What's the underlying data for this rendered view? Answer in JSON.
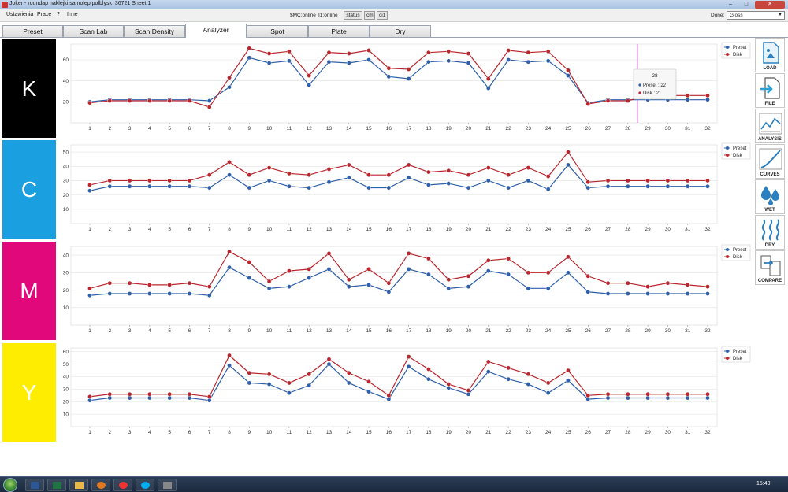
{
  "window": {
    "title": "Joker - roundap naklejki samolep polblysk_36721 Sheet 1",
    "minimize": "–",
    "maximize": "□",
    "close": "✕"
  },
  "menu": {
    "items": [
      "Ustawienia",
      "Prace",
      "?",
      "Inne"
    ]
  },
  "status": {
    "smc": "$MC:online",
    "i1": "I1:online",
    "status_btn": "status",
    "cm_btn": "cm",
    "ci_btn": "ci1"
  },
  "done": {
    "label": "Done:",
    "value": "Gloss"
  },
  "tabs": [
    "Preset",
    "Scan Lab",
    "Scan Density",
    "Analyzer",
    "Spot",
    "Plate",
    "Dry"
  ],
  "active_tab": "Analyzer",
  "sidebar": [
    "LOAD",
    "FILE",
    "ANALYSIS",
    "CURVES",
    "WET",
    "DRY",
    "COMPARE"
  ],
  "tooltip": {
    "title": "28",
    "preset": "Preset : 22",
    "disk": "Disk : 21"
  },
  "taskbar": {
    "clock": "15:49"
  },
  "colors": {
    "preset": "#2e5fa8",
    "disk": "#b8262e",
    "cyan": "#1a9fe0",
    "magenta": "#e0087a",
    "yellow": "#ffed00",
    "black": "#000000",
    "cursor": "#cc33cc"
  },
  "chart_data": [
    {
      "type": "line",
      "channel": "K",
      "band_color": "black",
      "ylim": [
        0,
        75
      ],
      "yticks": [
        20,
        40,
        60
      ],
      "x": [
        1,
        2,
        3,
        4,
        5,
        6,
        7,
        8,
        9,
        10,
        11,
        12,
        13,
        14,
        15,
        16,
        17,
        18,
        19,
        20,
        21,
        22,
        23,
        24,
        25,
        26,
        27,
        28,
        29,
        30,
        31,
        32
      ],
      "series": [
        {
          "name": "Preset",
          "values": [
            20,
            22,
            22,
            22,
            22,
            22,
            21,
            34,
            62,
            57,
            59,
            36,
            58,
            57,
            60,
            44,
            42,
            58,
            59,
            57,
            33,
            60,
            58,
            59,
            45,
            19,
            22,
            22,
            22,
            22,
            22,
            22
          ]
        },
        {
          "name": "Disk",
          "values": [
            19,
            21,
            21,
            21,
            21,
            21,
            15,
            43,
            71,
            66,
            68,
            45,
            67,
            66,
            69,
            52,
            51,
            67,
            68,
            66,
            42,
            69,
            67,
            68,
            50,
            18,
            21,
            21,
            26,
            26,
            26,
            26
          ]
        }
      ],
      "legend": "top-right"
    },
    {
      "type": "line",
      "channel": "C",
      "band_color": "cyan",
      "ylim": [
        0,
        55
      ],
      "yticks": [
        10,
        20,
        30,
        40,
        50
      ],
      "x": [
        1,
        2,
        3,
        4,
        5,
        6,
        7,
        8,
        9,
        10,
        11,
        12,
        13,
        14,
        15,
        16,
        17,
        18,
        19,
        20,
        21,
        22,
        23,
        24,
        25,
        26,
        27,
        28,
        29,
        30,
        31,
        32
      ],
      "series": [
        {
          "name": "Preset",
          "values": [
            23,
            26,
            26,
            26,
            26,
            26,
            25,
            34,
            25,
            30,
            26,
            25,
            29,
            32,
            25,
            25,
            32,
            27,
            28,
            25,
            30,
            25,
            30,
            24,
            41,
            25,
            26,
            26,
            26,
            26,
            26,
            26
          ]
        },
        {
          "name": "Disk",
          "values": [
            27,
            30,
            30,
            30,
            30,
            30,
            34,
            43,
            34,
            39,
            35,
            34,
            38,
            41,
            34,
            34,
            41,
            36,
            37,
            34,
            39,
            34,
            39,
            33,
            50,
            29,
            30,
            30,
            30,
            30,
            30,
            30
          ]
        }
      ],
      "legend": "top-right"
    },
    {
      "type": "line",
      "channel": "M",
      "band_color": "magenta",
      "ylim": [
        0,
        45
      ],
      "yticks": [
        10,
        20,
        30,
        40
      ],
      "x": [
        1,
        2,
        3,
        4,
        5,
        6,
        7,
        8,
        9,
        10,
        11,
        12,
        13,
        14,
        15,
        16,
        17,
        18,
        19,
        20,
        21,
        22,
        23,
        24,
        25,
        26,
        27,
        28,
        29,
        30,
        31,
        32
      ],
      "series": [
        {
          "name": "Preset",
          "values": [
            17,
            18,
            18,
            18,
            18,
            18,
            17,
            33,
            27,
            21,
            22,
            27,
            32,
            22,
            23,
            19,
            32,
            29,
            21,
            22,
            31,
            29,
            21,
            21,
            30,
            19,
            18,
            18,
            18,
            18,
            18,
            18
          ]
        },
        {
          "name": "Disk",
          "values": [
            21,
            24,
            24,
            23,
            23,
            24,
            22,
            42,
            36,
            25,
            31,
            32,
            41,
            26,
            32,
            24,
            41,
            38,
            26,
            28,
            37,
            38,
            30,
            30,
            39,
            28,
            24,
            24,
            22,
            24,
            23,
            22
          ]
        }
      ],
      "legend": "top-right"
    },
    {
      "type": "line",
      "channel": "Y",
      "band_color": "yellow",
      "ylim": [
        0,
        63
      ],
      "yticks": [
        10,
        20,
        30,
        40,
        50,
        60
      ],
      "x": [
        1,
        2,
        3,
        4,
        5,
        6,
        7,
        8,
        9,
        10,
        11,
        12,
        13,
        14,
        15,
        16,
        17,
        18,
        19,
        20,
        21,
        22,
        23,
        24,
        25,
        26,
        27,
        28,
        29,
        30,
        31,
        32
      ],
      "series": [
        {
          "name": "Preset",
          "values": [
            21,
            23,
            23,
            23,
            23,
            23,
            21,
            49,
            35,
            34,
            27,
            33,
            50,
            35,
            28,
            22,
            48,
            38,
            31,
            26,
            44,
            38,
            34,
            27,
            37,
            22,
            23,
            23,
            23,
            23,
            23,
            23
          ]
        },
        {
          "name": "Disk",
          "values": [
            24,
            26,
            26,
            26,
            26,
            26,
            24,
            57,
            43,
            42,
            35,
            42,
            54,
            43,
            36,
            25,
            56,
            46,
            34,
            29,
            52,
            47,
            42,
            35,
            45,
            25,
            26,
            26,
            26,
            26,
            26,
            26
          ]
        }
      ],
      "legend": "top-right"
    }
  ]
}
